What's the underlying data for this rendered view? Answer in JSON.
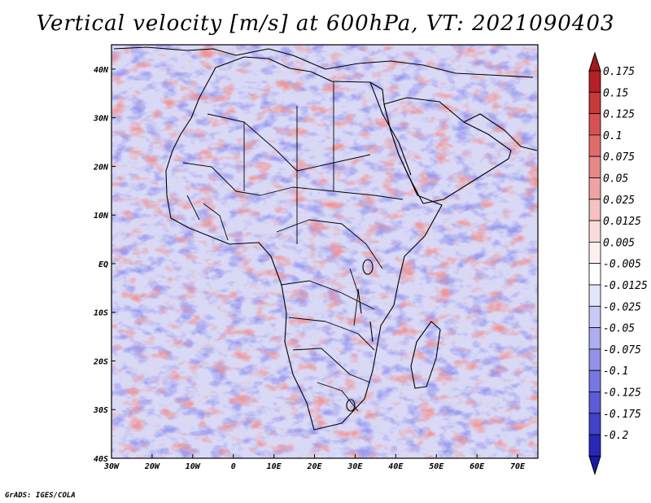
{
  "title": "Vertical velocity [m/s] at 600hPa, VT: 2021090403",
  "credit": "GrADS: IGES/COLA",
  "map": {
    "lon_range": [
      -30,
      75
    ],
    "lat_range": [
      -40,
      45
    ],
    "lon_ticks": [
      {
        "value": -30,
        "label": "30W"
      },
      {
        "value": -20,
        "label": "20W"
      },
      {
        "value": -10,
        "label": "10W"
      },
      {
        "value": 0,
        "label": "0"
      },
      {
        "value": 10,
        "label": "10E"
      },
      {
        "value": 20,
        "label": "20E"
      },
      {
        "value": 30,
        "label": "30E"
      },
      {
        "value": 40,
        "label": "40E"
      },
      {
        "value": 50,
        "label": "50E"
      },
      {
        "value": 60,
        "label": "60E"
      },
      {
        "value": 70,
        "label": "70E"
      }
    ],
    "lat_ticks": [
      {
        "value": 40,
        "label": "40N"
      },
      {
        "value": 30,
        "label": "30N"
      },
      {
        "value": 20,
        "label": "20N"
      },
      {
        "value": 10,
        "label": "10N"
      },
      {
        "value": 0,
        "label": "EQ"
      },
      {
        "value": -10,
        "label": "10S"
      },
      {
        "value": -20,
        "label": "20S"
      },
      {
        "value": -30,
        "label": "30S"
      },
      {
        "value": -40,
        "label": "40S"
      }
    ]
  },
  "colorbar": {
    "levels": [
      {
        "label": "0.175",
        "color": "#b42025"
      },
      {
        "label": "0.15",
        "color": "#c73a3a"
      },
      {
        "label": "0.125",
        "color": "#d65252"
      },
      {
        "label": "0.1",
        "color": "#e06c6c"
      },
      {
        "label": "0.075",
        "color": "#e88787"
      },
      {
        "label": "0.05",
        "color": "#efa3a3"
      },
      {
        "label": "0.025",
        "color": "#f5c1c1"
      },
      {
        "label": "0.0125",
        "color": "#fadcdc"
      },
      {
        "label": "0.005",
        "color": "#fdf0f0"
      },
      {
        "label": "-0.005",
        "color": "#ffffff"
      },
      {
        "label": "-0.0125",
        "color": "#e4e4fb"
      },
      {
        "label": "-0.025",
        "color": "#c9c9f5"
      },
      {
        "label": "-0.05",
        "color": "#adadef"
      },
      {
        "label": "-0.075",
        "color": "#9292e8"
      },
      {
        "label": "-0.1",
        "color": "#7777e0"
      },
      {
        "label": "-0.125",
        "color": "#5c5cd6"
      },
      {
        "label": "-0.175",
        "color": "#4141c9"
      },
      {
        "label": "-0.2",
        "color": "#2828b8"
      }
    ],
    "top_arrow_color": "#a21b1f",
    "bottom_arrow_color": "#1a1aa8"
  }
}
